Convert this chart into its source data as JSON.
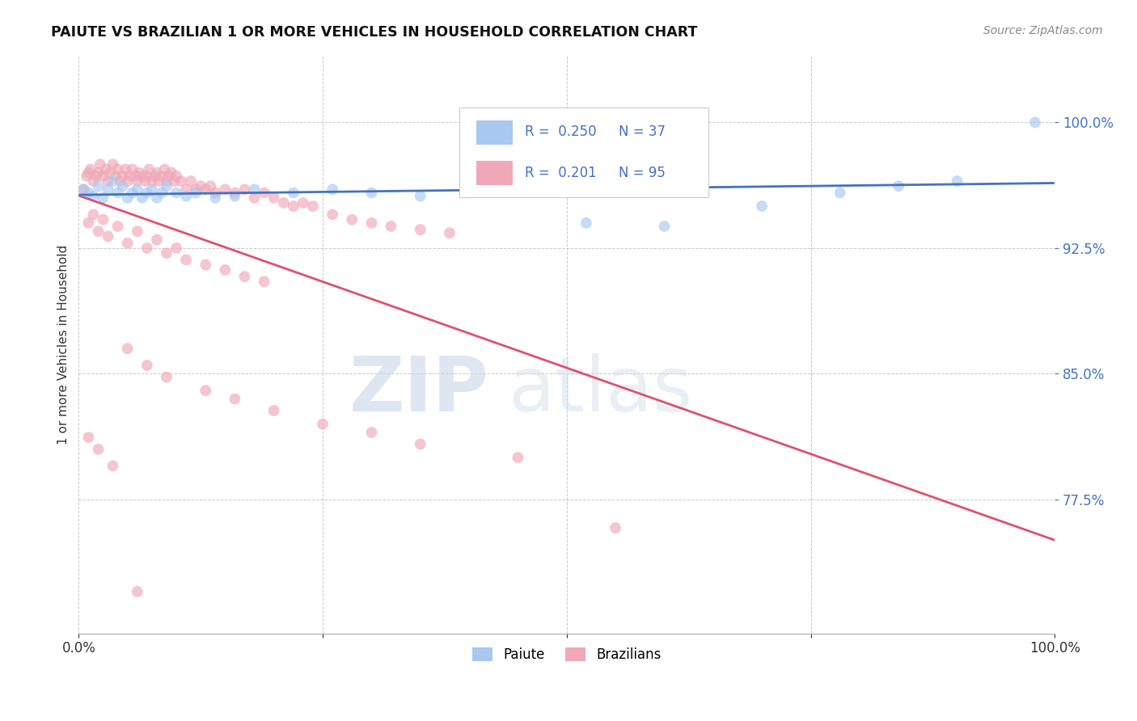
{
  "title": "PAIUTE VS BRAZILIAN 1 OR MORE VEHICLES IN HOUSEHOLD CORRELATION CHART",
  "source": "Source: ZipAtlas.com",
  "ylabel": "1 or more Vehicles in Household",
  "xlim": [
    0.0,
    1.0
  ],
  "ylim": [
    0.695,
    1.04
  ],
  "yticks": [
    0.775,
    0.85,
    0.925,
    1.0
  ],
  "ytick_labels": [
    "77.5%",
    "85.0%",
    "92.5%",
    "100.0%"
  ],
  "xticks": [
    0.0,
    0.25,
    0.5,
    0.75,
    1.0
  ],
  "xtick_labels": [
    "0.0%",
    "",
    "",
    "",
    "100.0%"
  ],
  "paiute_color": "#a8c8f0",
  "brazilian_color": "#f0a8b8",
  "paiute_line_color": "#4472c4",
  "brazilian_line_color": "#e05070",
  "paiute_R": 0.25,
  "paiute_N": 37,
  "brazilian_R": 0.201,
  "brazilian_N": 95,
  "legend_label_paiute": "Paiute",
  "legend_label_brazilian": "Brazilians",
  "watermark_zip": "ZIP",
  "watermark_atlas": "atlas",
  "background_color": "#ffffff",
  "scatter_alpha": 0.65,
  "scatter_size": 100,
  "paiute_x": [
    0.005,
    0.01,
    0.015,
    0.02,
    0.025,
    0.03,
    0.035,
    0.04,
    0.045,
    0.05,
    0.055,
    0.06,
    0.065,
    0.07,
    0.075,
    0.08,
    0.085,
    0.09,
    0.1,
    0.11,
    0.12,
    0.14,
    0.16,
    0.18,
    0.22,
    0.26,
    0.3,
    0.35,
    0.4,
    0.45,
    0.52,
    0.6,
    0.7,
    0.78,
    0.84,
    0.9,
    0.98
  ],
  "paiute_y": [
    0.96,
    0.958,
    0.956,
    0.962,
    0.955,
    0.96,
    0.965,
    0.958,
    0.962,
    0.955,
    0.958,
    0.96,
    0.955,
    0.958,
    0.96,
    0.955,
    0.958,
    0.962,
    0.958,
    0.956,
    0.958,
    0.955,
    0.956,
    0.96,
    0.958,
    0.96,
    0.958,
    0.956,
    0.958,
    0.96,
    0.94,
    0.938,
    0.95,
    0.958,
    0.962,
    0.965,
    1.0
  ],
  "brazilian_x": [
    0.005,
    0.008,
    0.01,
    0.012,
    0.015,
    0.018,
    0.02,
    0.022,
    0.025,
    0.028,
    0.03,
    0.032,
    0.035,
    0.038,
    0.04,
    0.042,
    0.045,
    0.048,
    0.05,
    0.052,
    0.055,
    0.058,
    0.06,
    0.062,
    0.065,
    0.068,
    0.07,
    0.072,
    0.075,
    0.078,
    0.08,
    0.082,
    0.085,
    0.088,
    0.09,
    0.092,
    0.095,
    0.098,
    0.1,
    0.105,
    0.11,
    0.115,
    0.12,
    0.125,
    0.13,
    0.135,
    0.14,
    0.15,
    0.16,
    0.17,
    0.18,
    0.19,
    0.2,
    0.21,
    0.22,
    0.23,
    0.24,
    0.26,
    0.28,
    0.3,
    0.32,
    0.35,
    0.38,
    0.01,
    0.02,
    0.03,
    0.05,
    0.07,
    0.09,
    0.11,
    0.13,
    0.15,
    0.17,
    0.19,
    0.015,
    0.025,
    0.04,
    0.06,
    0.08,
    0.1,
    0.05,
    0.07,
    0.09,
    0.13,
    0.16,
    0.2,
    0.25,
    0.3,
    0.35,
    0.45,
    0.55,
    0.01,
    0.02,
    0.035,
    0.06
  ],
  "brazilian_y": [
    0.96,
    0.968,
    0.97,
    0.972,
    0.965,
    0.968,
    0.97,
    0.975,
    0.968,
    0.972,
    0.965,
    0.97,
    0.975,
    0.968,
    0.972,
    0.965,
    0.968,
    0.972,
    0.965,
    0.968,
    0.972,
    0.968,
    0.965,
    0.97,
    0.968,
    0.965,
    0.968,
    0.972,
    0.965,
    0.968,
    0.97,
    0.965,
    0.968,
    0.972,
    0.965,
    0.968,
    0.97,
    0.965,
    0.968,
    0.965,
    0.96,
    0.965,
    0.96,
    0.962,
    0.96,
    0.962,
    0.958,
    0.96,
    0.958,
    0.96,
    0.955,
    0.958,
    0.955,
    0.952,
    0.95,
    0.952,
    0.95,
    0.945,
    0.942,
    0.94,
    0.938,
    0.936,
    0.934,
    0.94,
    0.935,
    0.932,
    0.928,
    0.925,
    0.922,
    0.918,
    0.915,
    0.912,
    0.908,
    0.905,
    0.945,
    0.942,
    0.938,
    0.935,
    0.93,
    0.925,
    0.865,
    0.855,
    0.848,
    0.84,
    0.835,
    0.828,
    0.82,
    0.815,
    0.808,
    0.8,
    0.758,
    0.812,
    0.805,
    0.795,
    0.72
  ]
}
